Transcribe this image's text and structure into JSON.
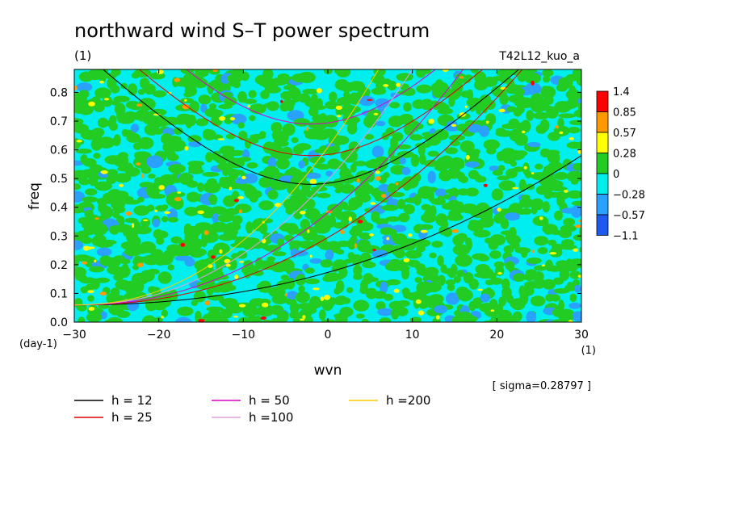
{
  "chart_data": {
    "type": "heatmap",
    "title": "northward wind S–T power spectrum",
    "units": "(1)",
    "run_label": "T42L12_kuo_a",
    "xlabel": "wvn",
    "ylabel": "freq",
    "x_units_label": "(1)",
    "y_units_label": "(day-1)",
    "xlim": [
      -30,
      30
    ],
    "ylim": [
      0,
      0.88
    ],
    "x_ticks": [
      "−30",
      "−20",
      "−10",
      "0",
      "10",
      "20",
      "30"
    ],
    "x_tick_values": [
      -30,
      -20,
      -10,
      0,
      10,
      20,
      30
    ],
    "y_ticks": [
      "0.0",
      "0.1",
      "0.2",
      "0.3",
      "0.4",
      "0.5",
      "0.6",
      "0.7",
      "0.8"
    ],
    "y_tick_values": [
      0,
      0.1,
      0.2,
      0.3,
      0.4,
      0.5,
      0.6,
      0.7,
      0.8
    ],
    "sigma_note": "[ sigma=0.28797 ]",
    "colorbar": {
      "labels": [
        "1.4",
        "0.85",
        "0.57",
        "0.28",
        "0",
        "−0.28",
        "−0.57",
        "−1.1"
      ],
      "colors": [
        "#ff0000",
        "#ff9900",
        "#ffff00",
        "#22cc22",
        "#00eeee",
        "#2aa0ff",
        "#1e5af0"
      ]
    },
    "field_colors": {
      "background": "#00eeee",
      "green": "#22cc22",
      "blue": "#2aa0ff",
      "yellow": "#ffff00",
      "orange": "#ff9900",
      "red": "#ff0000"
    },
    "curves_note": "Dispersion curves for equivalent depths h; each curve family (gravity waves centered near wvn -2, Kelvin-like rising curves) drawn per depth.",
    "series": [
      {
        "name": "h = 12",
        "color": "#000000",
        "h": 12
      },
      {
        "name": "h = 25",
        "color": "#dd0000",
        "h": 25
      },
      {
        "name": "h = 50",
        "color": "#dd00cc",
        "h": 50
      },
      {
        "name": "h =100",
        "color": "#e0a0e0",
        "h": 100
      },
      {
        "name": "h =200",
        "color": "#ffcc00",
        "h": 200
      }
    ],
    "gravity_minima": [
      {
        "h": 12,
        "wvn": -2,
        "freq": 0.48
      },
      {
        "h": 25,
        "wvn": -2,
        "freq": 0.58
      },
      {
        "h": 50,
        "wvn": -2,
        "freq": 0.69
      }
    ],
    "kelvin_endpoints": [
      {
        "h": 12,
        "wvn": 30,
        "freq": 0.58
      },
      {
        "h": 25,
        "wvn": 23,
        "freq": 0.88
      },
      {
        "h": 50,
        "wvn": 16,
        "freq": 0.88
      },
      {
        "h": 100,
        "wvn": 10,
        "freq": 0.88
      },
      {
        "h": 200,
        "wvn": 6,
        "freq": 0.88
      }
    ]
  }
}
